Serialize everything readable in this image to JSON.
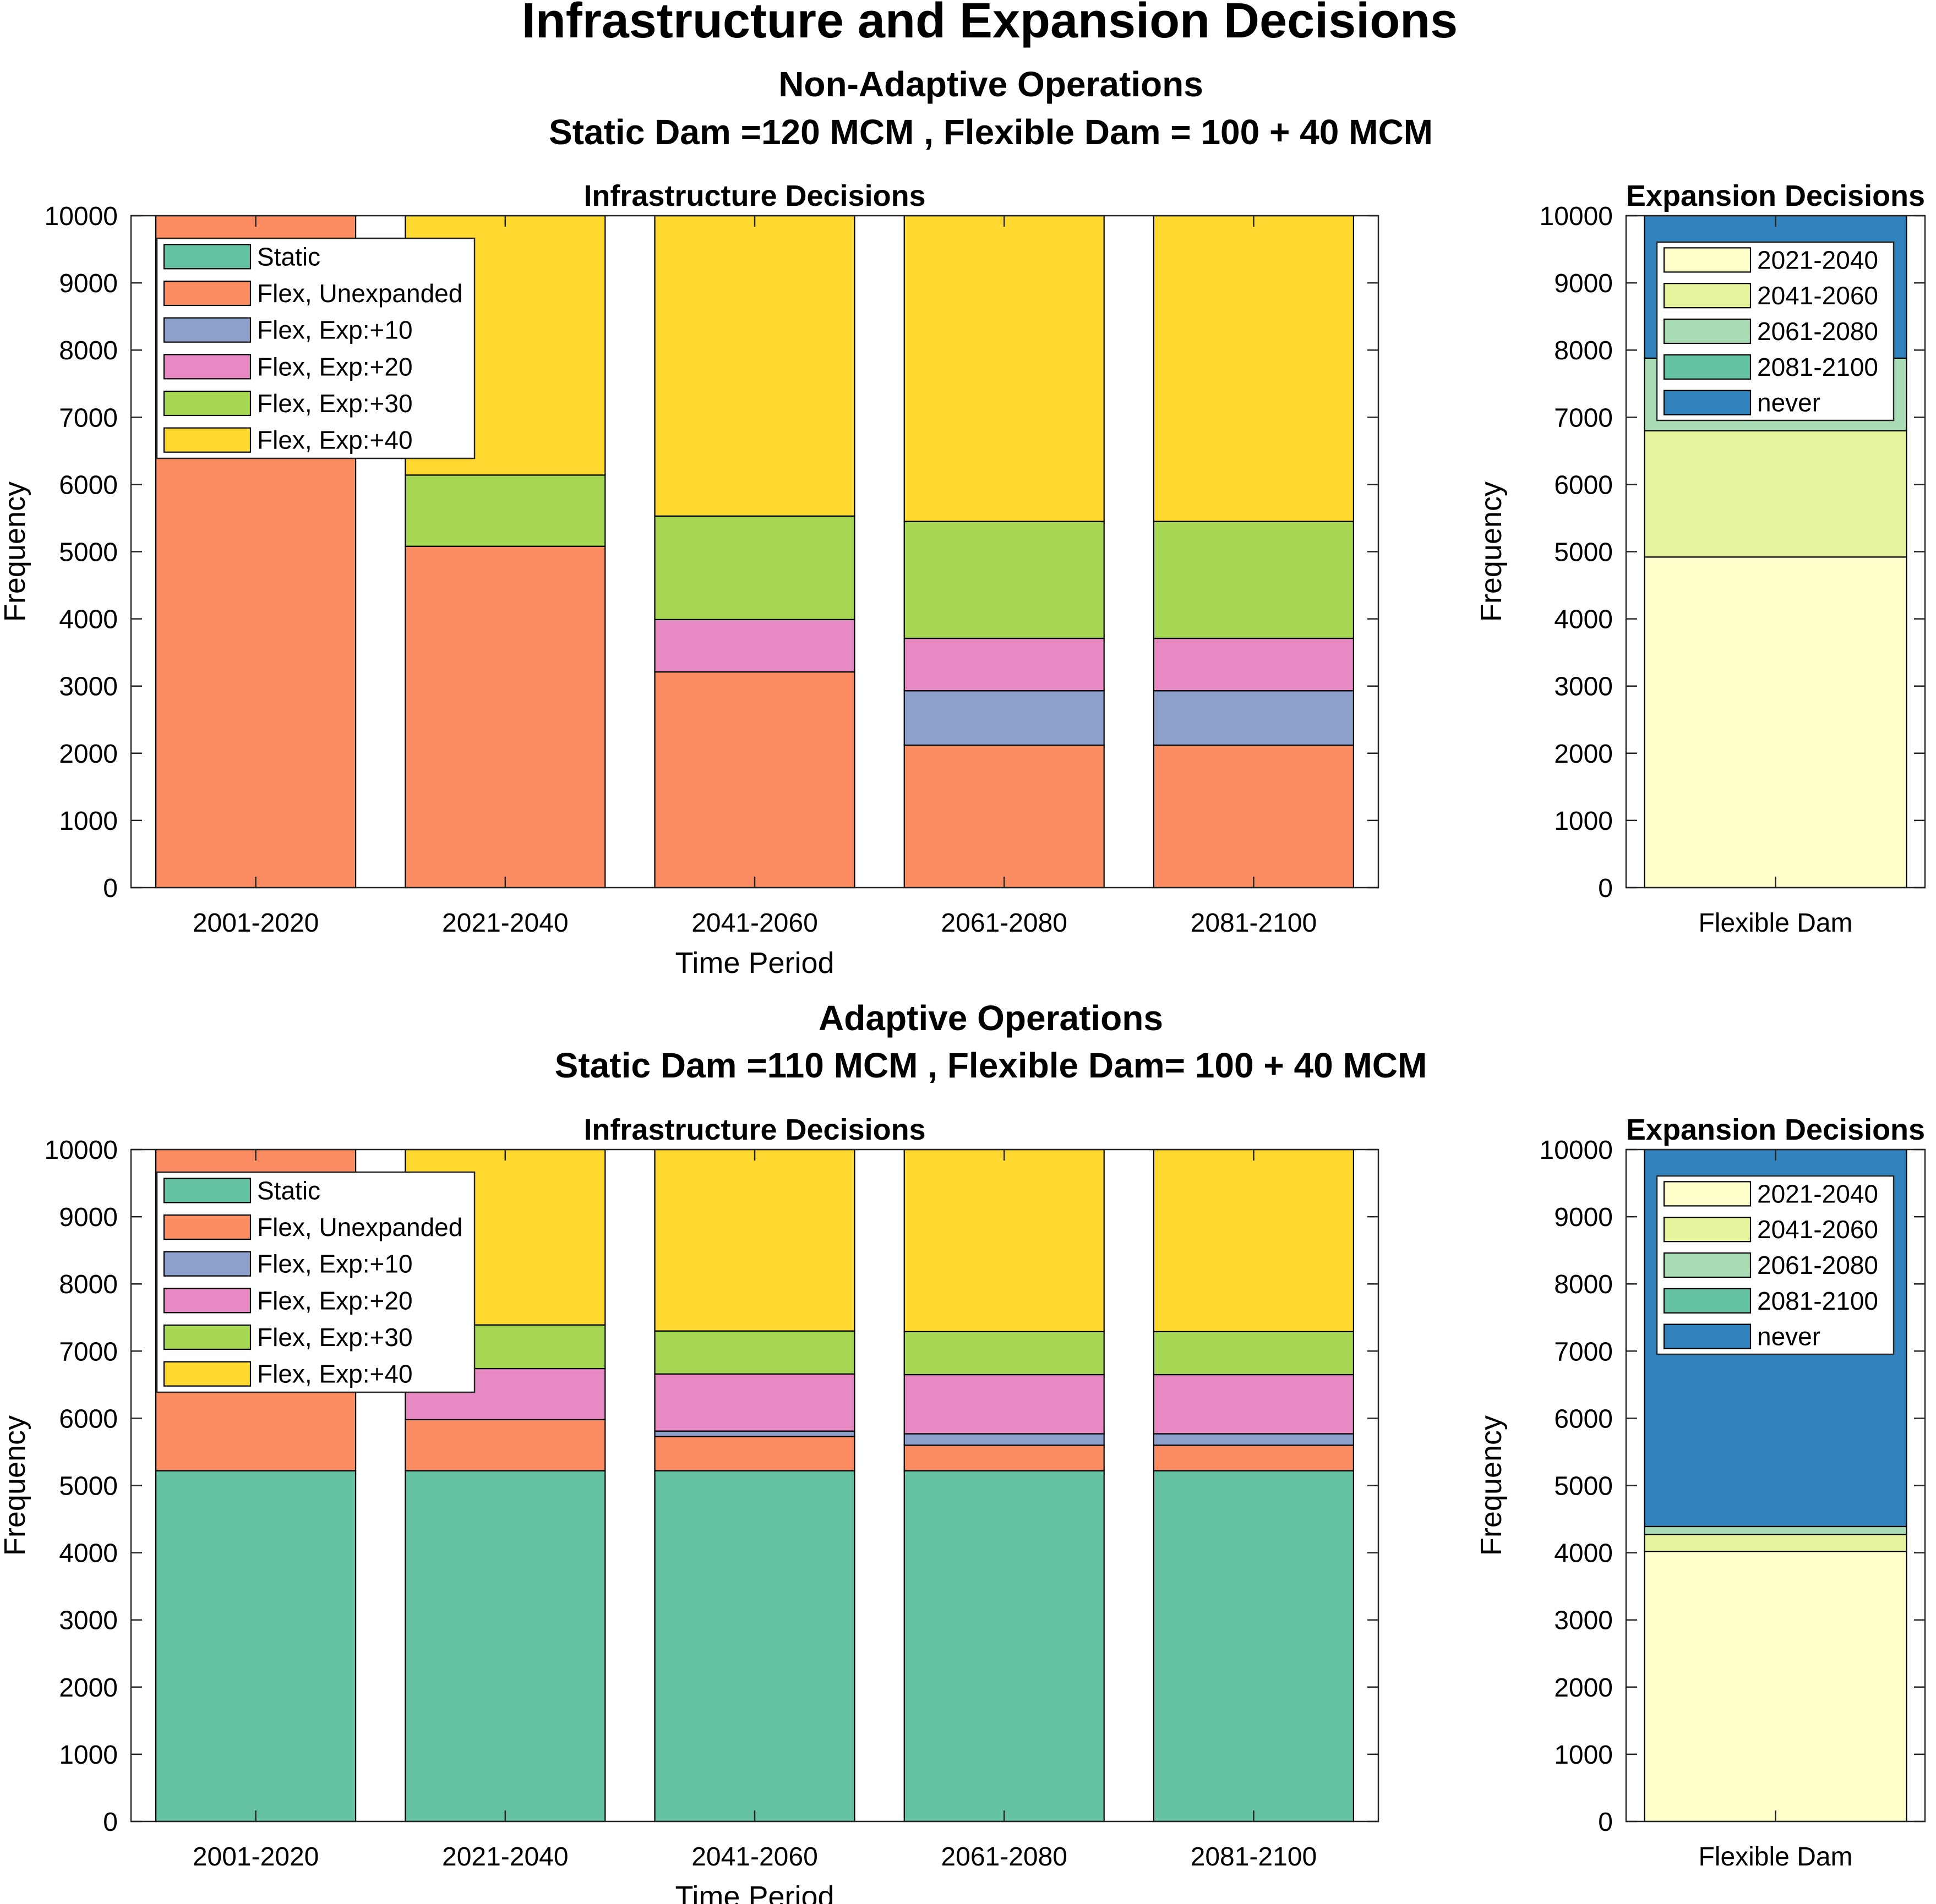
{
  "figure": {
    "title": "Infrastructure and Expansion Decisions",
    "sections": [
      {
        "title": "Non-Adaptive Operations",
        "subtitle": "Static Dam =120 MCM , Flexible Dam = 100 + 40 MCM"
      },
      {
        "title": "Adaptive Operations",
        "subtitle": "Static Dam =110 MCM , Flexible Dam= 100 + 40 MCM"
      }
    ]
  },
  "colors": {
    "Static": "#66c2a5",
    "Flex, Unexpanded": "#fc8d62",
    "Flex, Exp:+10": "#8da0cb",
    "Flex, Exp:+20": "#e78ac3",
    "Flex, Exp:+30": "#a6d854",
    "Flex, Exp:+40": "#ffd92f",
    "2021-2040": "#ffffcc",
    "2041-2060": "#e6f59d",
    "2061-2080": "#a8ddb5",
    "2081-2100": "#66c2a5",
    "never": "#3182bd"
  },
  "chart_data": [
    {
      "type": "bar",
      "stacked": true,
      "section": 0,
      "title": "Infrastructure Decisions",
      "xlabel": "Time Period",
      "ylabel": "Frequency",
      "ylim": [
        0,
        10000
      ],
      "yticks": [
        0,
        1000,
        2000,
        3000,
        4000,
        5000,
        6000,
        7000,
        8000,
        9000,
        10000
      ],
      "legend_position": "top-left",
      "categories": [
        "2001-2020",
        "2021-2040",
        "2041-2060",
        "2061-2080",
        "2081-2100"
      ],
      "series": [
        {
          "name": "Static",
          "values": [
            0,
            0,
            0,
            0,
            0
          ]
        },
        {
          "name": "Flex, Unexpanded",
          "values": [
            10000,
            5080,
            3210,
            2120,
            2120
          ]
        },
        {
          "name": "Flex, Exp:+10",
          "values": [
            0,
            0,
            0,
            810,
            810
          ]
        },
        {
          "name": "Flex, Exp:+20",
          "values": [
            0,
            0,
            780,
            780,
            780
          ]
        },
        {
          "name": "Flex, Exp:+30",
          "values": [
            0,
            1060,
            1540,
            1740,
            1740
          ]
        },
        {
          "name": "Flex, Exp:+40",
          "values": [
            0,
            3860,
            4470,
            4550,
            4550
          ]
        }
      ]
    },
    {
      "type": "bar",
      "stacked": true,
      "section": 0,
      "title": "Expansion Decisions",
      "xlabel": "",
      "ylabel": "Frequency",
      "ylim": [
        0,
        10000
      ],
      "yticks": [
        0,
        1000,
        2000,
        3000,
        4000,
        5000,
        6000,
        7000,
        8000,
        9000,
        10000
      ],
      "legend_position": "top",
      "categories": [
        "Flexible Dam"
      ],
      "series": [
        {
          "name": "2021-2040",
          "values": [
            4920
          ]
        },
        {
          "name": "2041-2060",
          "values": [
            1880
          ]
        },
        {
          "name": "2061-2080",
          "values": [
            1080
          ]
        },
        {
          "name": "2081-2100",
          "values": [
            0
          ]
        },
        {
          "name": "never",
          "values": [
            2120
          ]
        }
      ]
    },
    {
      "type": "bar",
      "stacked": true,
      "section": 1,
      "title": "Infrastructure Decisions",
      "xlabel": "Time Period",
      "ylabel": "Frequency",
      "ylim": [
        0,
        10000
      ],
      "yticks": [
        0,
        1000,
        2000,
        3000,
        4000,
        5000,
        6000,
        7000,
        8000,
        9000,
        10000
      ],
      "legend_position": "top-left",
      "categories": [
        "2001-2020",
        "2021-2040",
        "2041-2060",
        "2061-2080",
        "2081-2100"
      ],
      "series": [
        {
          "name": "Static",
          "values": [
            5220,
            5220,
            5220,
            5220,
            5220
          ]
        },
        {
          "name": "Flex, Unexpanded",
          "values": [
            4780,
            760,
            510,
            380,
            380
          ]
        },
        {
          "name": "Flex, Exp:+10",
          "values": [
            0,
            0,
            80,
            170,
            170
          ]
        },
        {
          "name": "Flex, Exp:+20",
          "values": [
            0,
            760,
            850,
            880,
            880
          ]
        },
        {
          "name": "Flex, Exp:+30",
          "values": [
            0,
            650,
            640,
            640,
            640
          ]
        },
        {
          "name": "Flex, Exp:+40",
          "values": [
            0,
            2610,
            2700,
            2710,
            2710
          ]
        }
      ]
    },
    {
      "type": "bar",
      "stacked": true,
      "section": 1,
      "title": "Expansion Decisions",
      "xlabel": "",
      "ylabel": "Frequency",
      "ylim": [
        0,
        10000
      ],
      "yticks": [
        0,
        1000,
        2000,
        3000,
        4000,
        5000,
        6000,
        7000,
        8000,
        9000,
        10000
      ],
      "legend_position": "top",
      "categories": [
        "Flexible Dam"
      ],
      "series": [
        {
          "name": "2021-2040",
          "values": [
            4020
          ]
        },
        {
          "name": "2041-2060",
          "values": [
            250
          ]
        },
        {
          "name": "2061-2080",
          "values": [
            120
          ]
        },
        {
          "name": "2081-2100",
          "values": [
            0
          ]
        },
        {
          "name": "never",
          "values": [
            5610
          ]
        }
      ]
    }
  ]
}
